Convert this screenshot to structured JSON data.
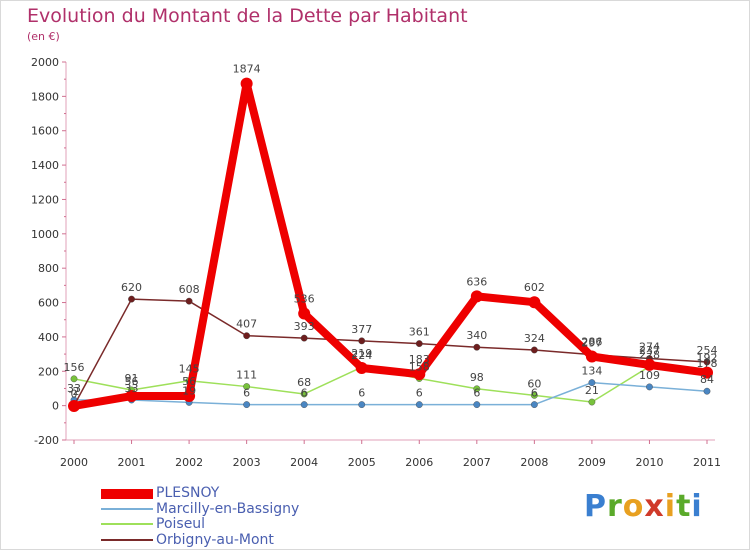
{
  "chart_data": {
    "type": "line",
    "title": "Evolution du Montant de la Dette par Habitant",
    "unit_label": "(en €)",
    "xlabel": "",
    "ylabel": "",
    "ylim": [
      -200,
      2000
    ],
    "y_ticks": [
      -200,
      0,
      200,
      400,
      600,
      800,
      1000,
      1200,
      1400,
      1600,
      1800,
      2000
    ],
    "x": [
      "2000",
      "2001",
      "2002",
      "2003",
      "2004",
      "2005",
      "2006",
      "2007",
      "2008",
      "2009",
      "2010",
      "2011"
    ],
    "series": [
      {
        "name": "Poiseul",
        "color": "#9ee05a",
        "marker": "#78c23c",
        "values": [
          156,
          91,
          145,
          111,
          68,
          224,
          158,
          98,
          60,
          21,
          228,
          178
        ]
      },
      {
        "name": "Marcilly-en-Bassigny",
        "color": "#7ab0d8",
        "marker": "#4a86c2",
        "values": [
          33,
          33,
          19,
          6,
          6,
          6,
          6,
          6,
          6,
          134,
          109,
          84
        ]
      },
      {
        "name": "Orbigny-au-Mont",
        "color": "#7a2a2a",
        "marker": "#6e1e1e",
        "values": [
          0,
          620,
          608,
          407,
          393,
          377,
          361,
          340,
          324,
          297,
          274,
          254
        ]
      },
      {
        "name": "PLESNOY",
        "color": "#ee0000",
        "marker": "#ee0000",
        "values": [
          -2,
          56,
          56,
          1874,
          536,
          219,
          183,
          636,
          602,
          286,
          237,
          192
        ]
      }
    ],
    "data_labels": {
      "Poiseul": [
        "156",
        "91",
        "145",
        "111",
        "68",
        "224",
        "158",
        "98",
        "60",
        "21",
        "228",
        "178"
      ],
      "Marcilly-en-Bassigny": [
        "33",
        "33",
        "19",
        "6",
        "6",
        "6",
        "6",
        "6",
        "6",
        "134",
        "109",
        "84"
      ],
      "Orbigny-au-Mont": [
        "0",
        "620",
        "608",
        "407",
        "393",
        "377",
        "361",
        "340",
        "324",
        "297",
        "274",
        "254"
      ],
      "PLESNOY": [
        "-2",
        "56",
        "56",
        "1874",
        "536",
        "219",
        "183",
        "636",
        "602",
        "286",
        "237",
        "192"
      ]
    },
    "legend": [
      {
        "name": "PLESNOY",
        "color": "#ee0000",
        "thickness": "heavy"
      },
      {
        "name": "Marcilly-en-Bassigny",
        "color": "#7ab0d8",
        "thickness": "thin"
      },
      {
        "name": "Poiseul",
        "color": "#9ee05a",
        "thickness": "thin"
      },
      {
        "name": "Orbigny-au-Mont",
        "color": "#7a2a2a",
        "thickness": "thin"
      }
    ],
    "legend_position": "bottom-left",
    "grid": false
  },
  "brand": {
    "letters": [
      "P",
      "r",
      "o",
      "x",
      "i",
      "t",
      "i"
    ],
    "colors": [
      "#3a7fd0",
      "#5aaa2a",
      "#e8a020",
      "#d03a2a",
      "#e8a020",
      "#5aaa2a",
      "#3a7fd0"
    ]
  }
}
